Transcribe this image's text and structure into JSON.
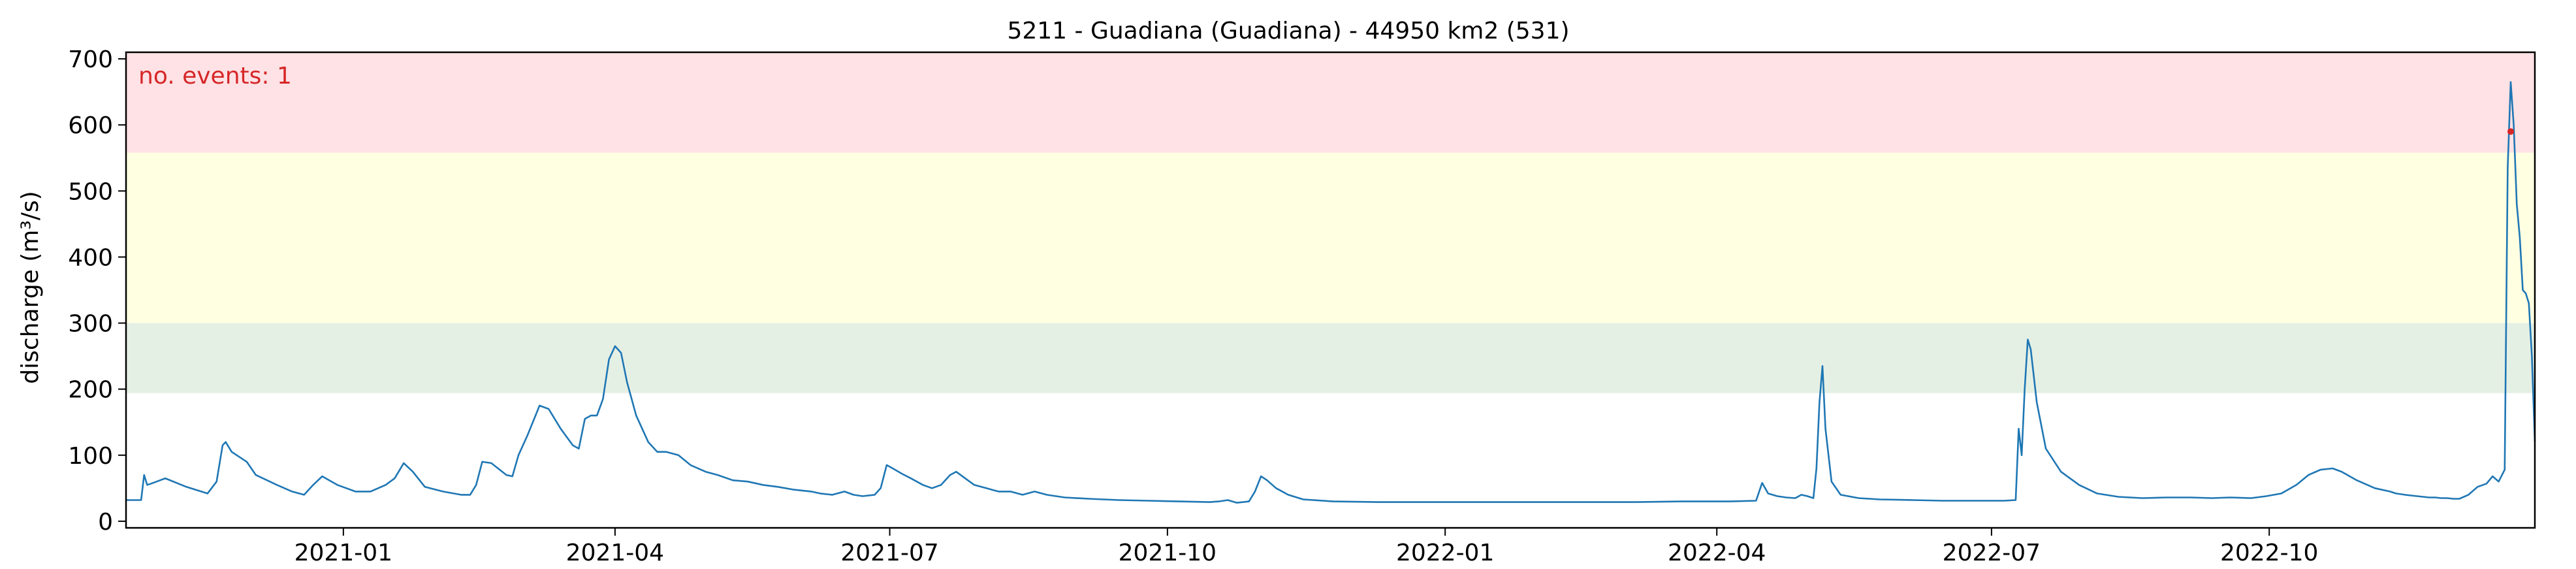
{
  "chart_data": {
    "type": "line",
    "title": "5211 - Guadiana (Guadiana) - 44950 km2 (531)",
    "xlabel": "",
    "ylabel": "discharge (m³/s)",
    "xlim": [
      "2020-10-21",
      "2022-12-28"
    ],
    "ylim": [
      -10,
      710
    ],
    "x_ticks": [
      {
        "date": "2021-01-01",
        "label": "2021-01"
      },
      {
        "date": "2021-04-01",
        "label": "2021-04"
      },
      {
        "date": "2021-07-01",
        "label": "2021-07"
      },
      {
        "date": "2021-10-01",
        "label": "2021-10"
      },
      {
        "date": "2022-01-01",
        "label": "2022-01"
      },
      {
        "date": "2022-04-01",
        "label": "2022-04"
      },
      {
        "date": "2022-07-01",
        "label": "2022-07"
      },
      {
        "date": "2022-10-01",
        "label": "2022-10"
      }
    ],
    "y_ticks": [
      0,
      100,
      200,
      300,
      400,
      500,
      600,
      700
    ],
    "threshold_bands": [
      {
        "from": 194,
        "to": 300,
        "color": "#e5f0e5"
      },
      {
        "from": 300,
        "to": 558,
        "color": "#ffffe2"
      },
      {
        "from": 558,
        "to": 710,
        "color": "#ffe2e5"
      }
    ],
    "annotation": {
      "text": "no. events: 1",
      "color": "#d62728"
    },
    "series": [
      {
        "color": "#1f77b4",
        "points": [
          [
            "2020-10-21",
            32
          ],
          [
            "2020-10-26",
            32
          ],
          [
            "2020-10-27",
            70
          ],
          [
            "2020-10-28",
            55
          ],
          [
            "2020-10-30",
            58
          ],
          [
            "2020-11-03",
            65
          ],
          [
            "2020-11-10",
            52
          ],
          [
            "2020-11-17",
            42
          ],
          [
            "2020-11-20",
            60
          ],
          [
            "2020-11-22",
            115
          ],
          [
            "2020-11-23",
            120
          ],
          [
            "2020-11-25",
            105
          ],
          [
            "2020-11-30",
            90
          ],
          [
            "2020-12-03",
            70
          ],
          [
            "2020-12-10",
            55
          ],
          [
            "2020-12-15",
            45
          ],
          [
            "2020-12-19",
            40
          ],
          [
            "2020-12-22",
            55
          ],
          [
            "2020-12-25",
            68
          ],
          [
            "2020-12-30",
            55
          ],
          [
            "2021-01-05",
            45
          ],
          [
            "2021-01-10",
            45
          ],
          [
            "2021-01-15",
            55
          ],
          [
            "2021-01-18",
            65
          ],
          [
            "2021-01-21",
            88
          ],
          [
            "2021-01-24",
            75
          ],
          [
            "2021-01-28",
            52
          ],
          [
            "2021-02-03",
            45
          ],
          [
            "2021-02-09",
            40
          ],
          [
            "2021-02-12",
            40
          ],
          [
            "2021-02-14",
            55
          ],
          [
            "2021-02-16",
            90
          ],
          [
            "2021-02-19",
            88
          ],
          [
            "2021-02-24",
            70
          ],
          [
            "2021-02-26",
            68
          ],
          [
            "2021-02-28",
            100
          ],
          [
            "2021-03-03",
            130
          ],
          [
            "2021-03-07",
            175
          ],
          [
            "2021-03-10",
            170
          ],
          [
            "2021-03-14",
            140
          ],
          [
            "2021-03-18",
            115
          ],
          [
            "2021-03-20",
            110
          ],
          [
            "2021-03-22",
            155
          ],
          [
            "2021-03-24",
            160
          ],
          [
            "2021-03-26",
            160
          ],
          [
            "2021-03-28",
            185
          ],
          [
            "2021-03-30",
            245
          ],
          [
            "2021-04-01",
            265
          ],
          [
            "2021-04-03",
            255
          ],
          [
            "2021-04-05",
            210
          ],
          [
            "2021-04-08",
            160
          ],
          [
            "2021-04-12",
            120
          ],
          [
            "2021-04-15",
            105
          ],
          [
            "2021-04-18",
            105
          ],
          [
            "2021-04-22",
            100
          ],
          [
            "2021-04-26",
            85
          ],
          [
            "2021-05-01",
            75
          ],
          [
            "2021-05-05",
            70
          ],
          [
            "2021-05-10",
            62
          ],
          [
            "2021-05-15",
            60
          ],
          [
            "2021-05-20",
            55
          ],
          [
            "2021-05-25",
            52
          ],
          [
            "2021-05-30",
            48
          ],
          [
            "2021-06-05",
            45
          ],
          [
            "2021-06-08",
            42
          ],
          [
            "2021-06-12",
            40
          ],
          [
            "2021-06-16",
            45
          ],
          [
            "2021-06-19",
            40
          ],
          [
            "2021-06-22",
            38
          ],
          [
            "2021-06-26",
            40
          ],
          [
            "2021-06-28",
            50
          ],
          [
            "2021-06-30",
            85
          ],
          [
            "2021-07-02",
            80
          ],
          [
            "2021-07-05",
            72
          ],
          [
            "2021-07-08",
            65
          ],
          [
            "2021-07-12",
            55
          ],
          [
            "2021-07-15",
            50
          ],
          [
            "2021-07-18",
            55
          ],
          [
            "2021-07-21",
            70
          ],
          [
            "2021-07-23",
            75
          ],
          [
            "2021-07-26",
            65
          ],
          [
            "2021-07-29",
            55
          ],
          [
            "2021-08-02",
            50
          ],
          [
            "2021-08-06",
            45
          ],
          [
            "2021-08-10",
            45
          ],
          [
            "2021-08-14",
            40
          ],
          [
            "2021-08-18",
            45
          ],
          [
            "2021-08-22",
            40
          ],
          [
            "2021-08-28",
            36
          ],
          [
            "2021-09-05",
            34
          ],
          [
            "2021-09-15",
            32
          ],
          [
            "2021-09-25",
            31
          ],
          [
            "2021-10-05",
            30
          ],
          [
            "2021-10-15",
            29
          ],
          [
            "2021-10-18",
            30
          ],
          [
            "2021-10-21",
            32
          ],
          [
            "2021-10-24",
            28
          ],
          [
            "2021-10-28",
            30
          ],
          [
            "2021-10-30",
            45
          ],
          [
            "2021-11-01",
            68
          ],
          [
            "2021-11-03",
            62
          ],
          [
            "2021-11-06",
            50
          ],
          [
            "2021-11-10",
            40
          ],
          [
            "2021-11-15",
            33
          ],
          [
            "2021-11-25",
            30
          ],
          [
            "2021-12-10",
            29
          ],
          [
            "2021-12-30",
            29
          ],
          [
            "2022-01-20",
            29
          ],
          [
            "2022-02-10",
            29
          ],
          [
            "2022-03-05",
            29
          ],
          [
            "2022-03-20",
            30
          ],
          [
            "2022-04-05",
            30
          ],
          [
            "2022-04-14",
            31
          ],
          [
            "2022-04-16",
            58
          ],
          [
            "2022-04-18",
            42
          ],
          [
            "2022-04-21",
            38
          ],
          [
            "2022-04-24",
            36
          ],
          [
            "2022-04-27",
            35
          ],
          [
            "2022-04-29",
            40
          ],
          [
            "2022-05-01",
            38
          ],
          [
            "2022-05-03",
            35
          ],
          [
            "2022-05-04",
            80
          ],
          [
            "2022-05-05",
            180
          ],
          [
            "2022-05-06",
            235
          ],
          [
            "2022-05-07",
            140
          ],
          [
            "2022-05-09",
            60
          ],
          [
            "2022-05-12",
            40
          ],
          [
            "2022-05-18",
            35
          ],
          [
            "2022-05-25",
            33
          ],
          [
            "2022-06-05",
            32
          ],
          [
            "2022-06-15",
            31
          ],
          [
            "2022-06-25",
            31
          ],
          [
            "2022-07-05",
            31
          ],
          [
            "2022-07-09",
            32
          ],
          [
            "2022-07-10",
            140
          ],
          [
            "2022-07-11",
            100
          ],
          [
            "2022-07-12",
            200
          ],
          [
            "2022-07-13",
            275
          ],
          [
            "2022-07-14",
            260
          ],
          [
            "2022-07-16",
            180
          ],
          [
            "2022-07-19",
            110
          ],
          [
            "2022-07-24",
            75
          ],
          [
            "2022-07-30",
            55
          ],
          [
            "2022-08-05",
            42
          ],
          [
            "2022-08-12",
            37
          ],
          [
            "2022-08-20",
            35
          ],
          [
            "2022-08-28",
            36
          ],
          [
            "2022-09-05",
            36
          ],
          [
            "2022-09-12",
            35
          ],
          [
            "2022-09-18",
            36
          ],
          [
            "2022-09-25",
            35
          ],
          [
            "2022-09-30",
            38
          ],
          [
            "2022-10-05",
            42
          ],
          [
            "2022-10-10",
            55
          ],
          [
            "2022-10-14",
            70
          ],
          [
            "2022-10-18",
            78
          ],
          [
            "2022-10-22",
            80
          ],
          [
            "2022-10-25",
            75
          ],
          [
            "2022-10-30",
            62
          ],
          [
            "2022-11-05",
            50
          ],
          [
            "2022-11-10",
            45
          ],
          [
            "2022-11-12",
            42
          ],
          [
            "2022-11-15",
            40
          ],
          [
            "2022-11-17",
            39
          ],
          [
            "2022-11-19",
            38
          ],
          [
            "2022-11-21",
            37
          ],
          [
            "2022-11-23",
            36
          ],
          [
            "2022-11-25",
            36
          ],
          [
            "2022-11-27",
            35
          ],
          [
            "2022-11-29",
            35
          ],
          [
            "2022-12-01",
            34
          ],
          [
            "2022-12-03",
            34
          ],
          [
            "2022-12-06",
            40
          ],
          [
            "2022-12-09",
            52
          ],
          [
            "2022-12-12",
            57
          ],
          [
            "2022-12-14",
            68
          ],
          [
            "2022-12-16",
            60
          ],
          [
            "2022-12-18",
            78
          ],
          [
            "2022-12-19",
            535
          ],
          [
            "2022-12-20",
            665
          ],
          [
            "2022-12-21",
            600
          ],
          [
            "2022-12-22",
            480
          ],
          [
            "2022-12-23",
            430
          ],
          [
            "2022-12-24",
            350
          ],
          [
            "2022-12-25",
            345
          ],
          [
            "2022-12-26",
            330
          ],
          [
            "2022-12-27",
            250
          ],
          [
            "2022-12-28",
            120
          ]
        ]
      }
    ],
    "event_markers": [
      {
        "date": "2022-12-20",
        "value": 590,
        "color": "#d62728"
      }
    ]
  }
}
